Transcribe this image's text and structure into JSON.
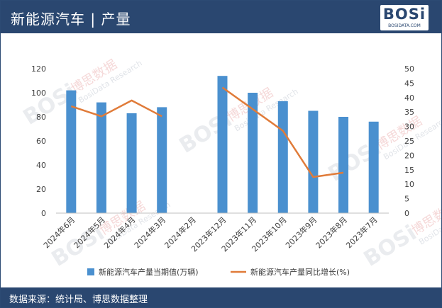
{
  "header": {
    "title": "新能源汽车 | 产量",
    "logo_text": "BOSi",
    "logo_sub": "BOSIDATA.COM"
  },
  "footer": {
    "source": "数据来源：统计局、博思数据整理"
  },
  "watermark": {
    "brand": "BOSi",
    "cn": "博思数据",
    "en": "BosiData Research"
  },
  "chart_data": {
    "type": "bar",
    "categories": [
      "2024年6月",
      "2024年5月",
      "2024年4月",
      "2024年3月",
      "2024年2月",
      "2023年12月",
      "2023年11月",
      "2023年10月",
      "2023年9月",
      "2023年8月",
      "2023年7月"
    ],
    "series": [
      {
        "name": "新能源汽车产量当期值(万辆)",
        "type": "bar",
        "axis": "left",
        "color": "#4a90cf",
        "values": [
          102,
          92,
          83,
          88,
          null,
          114,
          100,
          93,
          85,
          80,
          76
        ]
      },
      {
        "name": "新能源汽车产量同比增长(%)",
        "type": "line",
        "axis": "right",
        "color": "#e07b39",
        "values": [
          37,
          33.5,
          39,
          33.5,
          null,
          43.5,
          36,
          28.5,
          12.5,
          14,
          null
        ]
      }
    ],
    "y_left": {
      "min": 0,
      "max": 120,
      "ticks": [
        "0",
        "20",
        "40",
        "60",
        "80",
        "100",
        "120"
      ]
    },
    "y_right": {
      "min": 0,
      "max": 50,
      "ticks": [
        "0",
        "5",
        "10",
        "15",
        "20",
        "25",
        "30",
        "35",
        "40",
        "45",
        "50"
      ]
    },
    "grid": false,
    "legend_position": "bottom"
  }
}
